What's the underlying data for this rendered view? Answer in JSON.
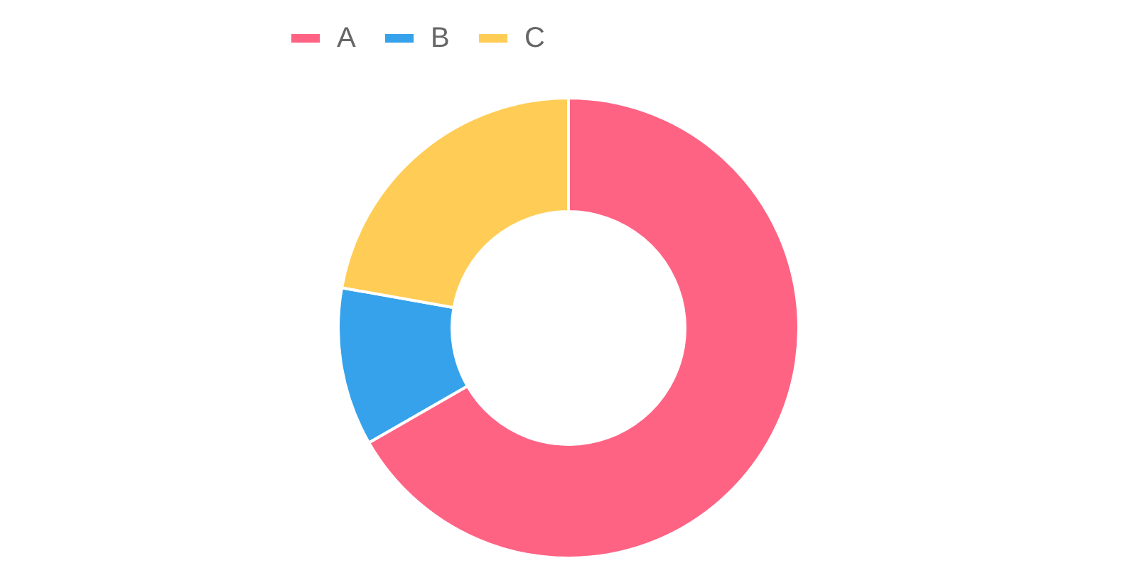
{
  "chart_data": {
    "type": "donut",
    "categories": [
      "A",
      "B",
      "C"
    ],
    "values": [
      66.7,
      11.1,
      22.2
    ],
    "colors": [
      "#ff6384",
      "#36a2eb",
      "#ffcd56"
    ],
    "legend": "top"
  }
}
